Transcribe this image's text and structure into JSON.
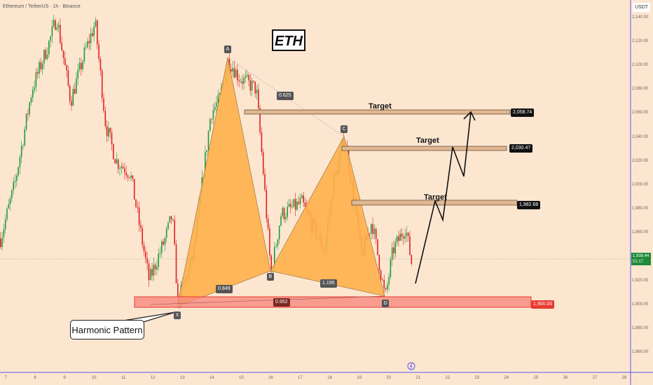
{
  "header": {
    "symbol_title": "Ethereum / TetherUS · 1h · Binance",
    "currency": "USDT"
  },
  "price_axis": [
    "2,140.00",
    "2,120.00",
    "2,100.00",
    "2,080.00",
    "2,060.00",
    "2,040.00",
    "2,020.00",
    "2,000.00",
    "1,980.00",
    "1,960.00",
    "1,920.00",
    "1,900.00",
    "1,880.00",
    "1,860.00"
  ],
  "time_axis": [
    "7",
    "8",
    "9",
    "10",
    "11",
    "12",
    "13",
    "14",
    "15",
    "16",
    "17",
    "18",
    "19",
    "20",
    "21",
    "22",
    "23",
    "24",
    "25",
    "26",
    "27",
    "28"
  ],
  "current_price": {
    "value": "1,938.44",
    "countdown": "51:17",
    "color": "#1e8a3a"
  },
  "annotations": {
    "title_box": "ETH",
    "callout": "Harmonic Pattern",
    "targets": [
      {
        "label": "Target",
        "price": "2,058.74"
      },
      {
        "label": "Target",
        "price": "2,030.47"
      },
      {
        "label": "Target",
        "price": "1,982.68"
      }
    ],
    "support": {
      "price": "1,900.00",
      "color": "#f05a50"
    },
    "pattern_points": [
      "X",
      "A",
      "B",
      "C",
      "D"
    ],
    "ratios": {
      "xb": "0.849",
      "ac": "0.625",
      "bd": "1.195",
      "xd": "0.952"
    },
    "pattern_color": "#ffb04a"
  },
  "colors": {
    "up": "#1e9a3a",
    "down": "#e01e1e",
    "background": "#fce6d0",
    "axis": "#5b5bf0"
  }
}
